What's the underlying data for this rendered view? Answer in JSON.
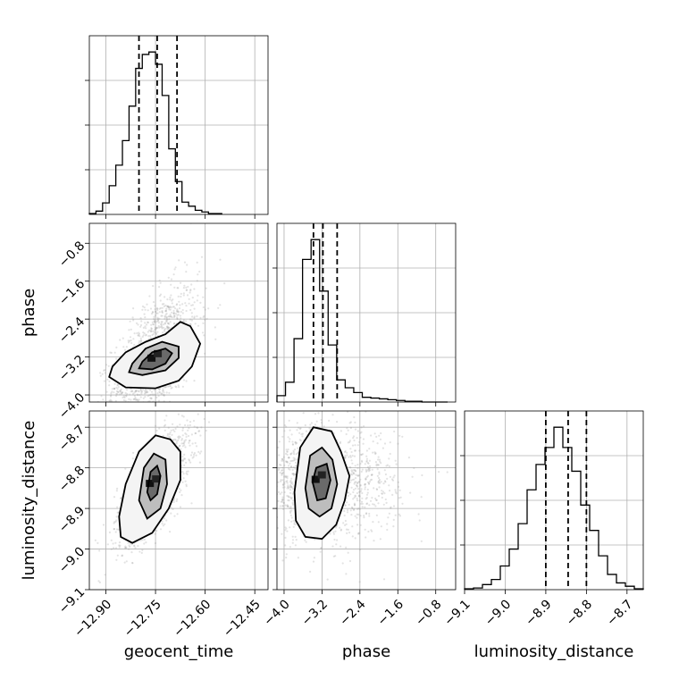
{
  "chart_data": {
    "type": "corner",
    "parameters": [
      "geocent_time",
      "phase",
      "luminosity_distance"
    ],
    "labels": {
      "geocent_time": "geocent_time",
      "phase": "phase",
      "luminosity_distance": "luminosity_distance"
    },
    "ranges": {
      "geocent_time": [
        -12.95,
        -12.41
      ],
      "phase": [
        -4.15,
        -0.38
      ],
      "luminosity_distance": [
        -9.1,
        -8.66
      ]
    },
    "ticks": {
      "geocent_time": [
        "-12.90",
        "-12.75",
        "-12.60",
        "-12.45"
      ],
      "phase": [
        "-4.0",
        "-3.2",
        "-2.4",
        "-1.6",
        "-0.8"
      ],
      "luminosity_distance": [
        "-9.1",
        "-9.0",
        "-8.9",
        "-8.8",
        "-8.7"
      ]
    },
    "quantiles": {
      "geocent_time": [
        -12.8,
        -12.745,
        -12.685
      ],
      "phase": [
        -3.38,
        -3.18,
        -2.88
      ],
      "luminosity_distance": [
        -8.9,
        -8.845,
        -8.8
      ]
    },
    "histograms": {
      "geocent_time": {
        "edges": [
          -12.95,
          -12.93,
          -12.91,
          -12.89,
          -12.87,
          -12.85,
          -12.83,
          -12.81,
          -12.79,
          -12.77,
          -12.75,
          -12.73,
          -12.71,
          -12.69,
          -12.67,
          -12.65,
          -12.63,
          -12.61,
          -12.59,
          -12.57,
          -12.55
        ],
        "counts": [
          1,
          4,
          14,
          35,
          60,
          90,
          132,
          178,
          195,
          198,
          183,
          145,
          80,
          40,
          15,
          10,
          5,
          3,
          1,
          1
        ]
      },
      "phase": {
        "edges": [
          -4.15,
          -3.97,
          -3.79,
          -3.61,
          -3.43,
          -3.25,
          -3.07,
          -2.89,
          -2.71,
          -2.53,
          -2.35,
          -2.17,
          -1.99,
          -1.81,
          -1.63,
          -1.45,
          -1.27,
          -1.09,
          -0.91,
          -0.73,
          -0.55
        ],
        "counts": [
          8,
          25,
          80,
          180,
          205,
          140,
          72,
          28,
          18,
          12,
          6,
          5,
          4,
          3,
          2,
          1,
          1,
          0,
          0,
          0
        ]
      },
      "luminosity_distance": {
        "edges": [
          -9.1,
          -9.078,
          -9.056,
          -9.034,
          -9.012,
          -8.99,
          -8.968,
          -8.946,
          -8.924,
          -8.902,
          -8.88,
          -8.858,
          -8.836,
          -8.814,
          -8.792,
          -8.77,
          -8.748,
          -8.726,
          -8.704,
          -8.682,
          -8.66
        ],
        "counts": [
          1,
          2,
          6,
          12,
          28,
          48,
          78,
          118,
          148,
          168,
          192,
          168,
          140,
          100,
          70,
          40,
          18,
          8,
          4,
          1
        ]
      }
    },
    "pairs": [
      {
        "x": "geocent_time",
        "y": "phase",
        "mean": [
          -12.75,
          -3.28
        ],
        "sd": [
          0.065,
          0.55
        ],
        "corr": 0.55,
        "contours": [
          {
            "level": "inner",
            "points": [
              [
                -12.79,
                -3.3
              ],
              [
                -12.76,
                -3.1
              ],
              [
                -12.72,
                -3.02
              ],
              [
                -12.7,
                -3.12
              ],
              [
                -12.72,
                -3.34
              ],
              [
                -12.76,
                -3.46
              ],
              [
                -12.8,
                -3.44
              ]
            ]
          },
          {
            "level": "middle",
            "points": [
              [
                -12.82,
                -3.34
              ],
              [
                -12.78,
                -3.02
              ],
              [
                -12.73,
                -2.88
              ],
              [
                -12.68,
                -2.98
              ],
              [
                -12.68,
                -3.22
              ],
              [
                -12.72,
                -3.48
              ],
              [
                -12.79,
                -3.58
              ],
              [
                -12.83,
                -3.52
              ]
            ]
          },
          {
            "level": "outer",
            "points": [
              [
                -12.88,
                -3.4
              ],
              [
                -12.84,
                -3.1
              ],
              [
                -12.78,
                -2.88
              ],
              [
                -12.72,
                -2.72
              ],
              [
                -12.675,
                -2.46
              ],
              [
                -12.645,
                -2.55
              ],
              [
                -12.615,
                -2.92
              ],
              [
                -12.64,
                -3.4
              ],
              [
                -12.68,
                -3.7
              ],
              [
                -12.75,
                -3.86
              ],
              [
                -12.84,
                -3.84
              ],
              [
                -12.89,
                -3.62
              ]
            ]
          }
        ]
      },
      {
        "x": "geocent_time",
        "y": "luminosity_distance",
        "mean": [
          -12.755,
          -8.845
        ],
        "sd": [
          0.055,
          0.07
        ],
        "corr": 0.7,
        "contours": [
          {
            "level": "inner",
            "points": [
              [
                -12.775,
                -8.86
              ],
              [
                -12.765,
                -8.81
              ],
              [
                -12.745,
                -8.795
              ],
              [
                -12.735,
                -8.82
              ],
              [
                -12.745,
                -8.865
              ],
              [
                -12.765,
                -8.88
              ]
            ]
          },
          {
            "level": "middle",
            "points": [
              [
                -12.8,
                -8.88
              ],
              [
                -12.785,
                -8.8
              ],
              [
                -12.755,
                -8.765
              ],
              [
                -12.72,
                -8.78
              ],
              [
                -12.715,
                -8.84
              ],
              [
                -12.735,
                -8.9
              ],
              [
                -12.775,
                -8.925
              ]
            ]
          },
          {
            "level": "outer",
            "points": [
              [
                -12.86,
                -8.92
              ],
              [
                -12.84,
                -8.84
              ],
              [
                -12.8,
                -8.76
              ],
              [
                -12.75,
                -8.72
              ],
              [
                -12.705,
                -8.73
              ],
              [
                -12.675,
                -8.76
              ],
              [
                -12.675,
                -8.83
              ],
              [
                -12.71,
                -8.9
              ],
              [
                -12.76,
                -8.96
              ],
              [
                -12.82,
                -8.985
              ],
              [
                -12.855,
                -8.97
              ]
            ]
          }
        ]
      },
      {
        "x": "phase",
        "y": "luminosity_distance",
        "mean": [
          -3.25,
          -8.835
        ],
        "sd": [
          0.55,
          0.07
        ],
        "corr": 0.0,
        "contours": [
          {
            "level": "inner",
            "points": [
              [
                -3.4,
                -8.835
              ],
              [
                -3.32,
                -8.8
              ],
              [
                -3.1,
                -8.79
              ],
              [
                -3.02,
                -8.83
              ],
              [
                -3.12,
                -8.875
              ],
              [
                -3.3,
                -8.88
              ]
            ]
          },
          {
            "level": "middle",
            "points": [
              [
                -3.55,
                -8.85
              ],
              [
                -3.45,
                -8.77
              ],
              [
                -3.2,
                -8.75
              ],
              [
                -2.98,
                -8.78
              ],
              [
                -2.88,
                -8.84
              ],
              [
                -3.0,
                -8.9
              ],
              [
                -3.25,
                -8.92
              ],
              [
                -3.48,
                -8.9
              ]
            ]
          },
          {
            "level": "outer",
            "points": [
              [
                -3.78,
                -8.86
              ],
              [
                -3.66,
                -8.75
              ],
              [
                -3.38,
                -8.7
              ],
              [
                -3.0,
                -8.71
              ],
              [
                -2.8,
                -8.76
              ],
              [
                -2.62,
                -8.82
              ],
              [
                -2.72,
                -8.88
              ],
              [
                -2.9,
                -8.94
              ],
              [
                -3.2,
                -8.975
              ],
              [
                -3.55,
                -8.97
              ],
              [
                -3.75,
                -8.93
              ]
            ]
          }
        ]
      }
    ]
  }
}
